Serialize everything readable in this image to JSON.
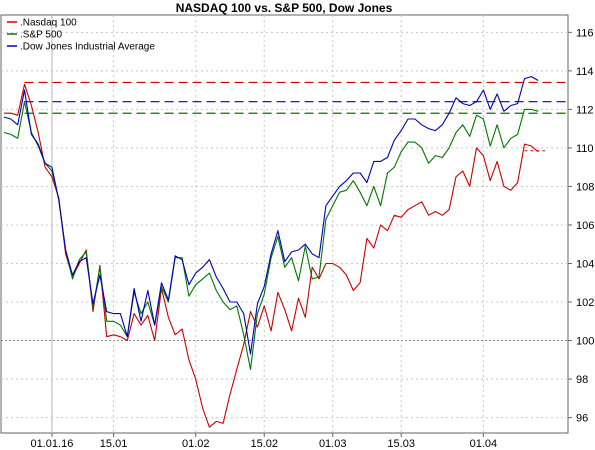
{
  "chart_data": {
    "type": "line",
    "title": "NASDAQ 100 vs. S&P 500, Dow Jones",
    "xlabel": "",
    "ylabel": "",
    "ylim": [
      95.2,
      116.9
    ],
    "yticks": [
      96,
      98,
      100,
      102,
      104,
      106,
      108,
      110,
      112,
      114,
      116
    ],
    "xticks": [
      {
        "label": "01.01.16",
        "x": 7
      },
      {
        "label": "15.01",
        "x": 16
      },
      {
        "label": "01.02",
        "x": 28
      },
      {
        "label": "15.02",
        "x": 38
      },
      {
        "label": "01.03",
        "x": 48
      },
      {
        "label": "15.03",
        "x": 58
      },
      {
        "label": "01.04",
        "x": 70
      }
    ],
    "xlim": [
      0,
      79
    ],
    "grid": true,
    "legend_position": "top-left",
    "baseline": 100,
    "cursor_x": 7,
    "series": [
      {
        "name": ".Nasdaq 100",
        "color": "#cc0000",
        "values": [
          111.8,
          111.8,
          111.7,
          113.3,
          112.2,
          110.8,
          109.0,
          108.5,
          107.4,
          104.5,
          103.3,
          104.0,
          104.7,
          101.5,
          103.9,
          100.2,
          100.3,
          100.2,
          100.0,
          101.4,
          100.8,
          101.3,
          100.0,
          102.7,
          101.2,
          100.3,
          100.6,
          99.0,
          98.0,
          96.5,
          95.5,
          95.8,
          95.7,
          97.2,
          98.5,
          99.8,
          101.5,
          100.7,
          101.8,
          100.5,
          102.5,
          101.6,
          100.5,
          102.2,
          101.2,
          103.8,
          103.2,
          104.0,
          104.0,
          103.8,
          103.4,
          102.6,
          103.0,
          105.3,
          104.8,
          106.0,
          105.7,
          106.5,
          106.4,
          106.8,
          107.0,
          107.2,
          106.5,
          106.7,
          106.5,
          106.8,
          108.5,
          108.8,
          108.0,
          110.0,
          109.6,
          108.3,
          109.3,
          108.0,
          107.8,
          108.2,
          110.2,
          110.1,
          109.8
        ]
      },
      {
        "name": ".S&P 500",
        "color": "#007700",
        "values": [
          110.8,
          110.7,
          110.5,
          112.4,
          110.8,
          110.1,
          109.2,
          108.8,
          107.3,
          104.7,
          103.2,
          104.2,
          104.6,
          101.7,
          103.8,
          101.0,
          101.0,
          100.8,
          100.2,
          102.5,
          101.4,
          102.0,
          100.8,
          102.8,
          102.0,
          104.3,
          104.3,
          102.3,
          102.9,
          103.2,
          103.5,
          102.6,
          102.0,
          101.6,
          101.8,
          100.3,
          98.5,
          101.4,
          102.4,
          104.3,
          105.4,
          103.8,
          104.3,
          103.1,
          104.9,
          103.2,
          103.3,
          106.3,
          107.0,
          107.7,
          107.8,
          108.3,
          107.7,
          107.0,
          108.0,
          107.0,
          108.7,
          109.0,
          109.8,
          110.3,
          110.3,
          110.0,
          109.2,
          109.6,
          109.5,
          110.0,
          110.8,
          111.2,
          110.6,
          111.7,
          111.5,
          110.1,
          111.2,
          110.0,
          110.5,
          110.7,
          112.0,
          112.0,
          111.9
        ]
      },
      {
        "name": ".Dow Jones Industrial Average",
        "color": "#0000bb",
        "values": [
          111.6,
          111.5,
          111.2,
          113.0,
          110.7,
          110.2,
          109.2,
          109.0,
          107.3,
          104.7,
          103.4,
          104.1,
          104.3,
          101.9,
          103.4,
          101.5,
          101.4,
          101.4,
          100.2,
          102.7,
          101.0,
          102.6,
          100.8,
          103.0,
          102.1,
          104.4,
          104.2,
          102.9,
          103.5,
          103.8,
          104.2,
          103.3,
          102.7,
          102.0,
          102.0,
          101.4,
          99.3,
          101.9,
          102.8,
          104.5,
          105.7,
          104.1,
          104.6,
          104.7,
          105.0,
          104.5,
          104.3,
          107.0,
          107.5,
          108.0,
          108.3,
          108.7,
          108.7,
          108.2,
          109.3,
          109.3,
          109.5,
          110.4,
          110.9,
          111.5,
          111.5,
          111.2,
          111.0,
          110.9,
          111.2,
          111.8,
          112.6,
          112.3,
          112.2,
          112.4,
          113.0,
          112.0,
          112.8,
          111.9,
          112.2,
          112.3,
          113.6,
          113.7,
          113.5
        ]
      }
    ],
    "reference_lines": [
      {
        "series": ".Nasdaq 100",
        "from": 3,
        "y": 113.4,
        "to_y": 109.85,
        "to_from": 76
      },
      {
        "series": ".S&P 500",
        "from": 3,
        "y": 111.8
      },
      {
        "series": ".Dow Jones Industrial Average",
        "from": 3,
        "y": 112.4
      }
    ]
  }
}
